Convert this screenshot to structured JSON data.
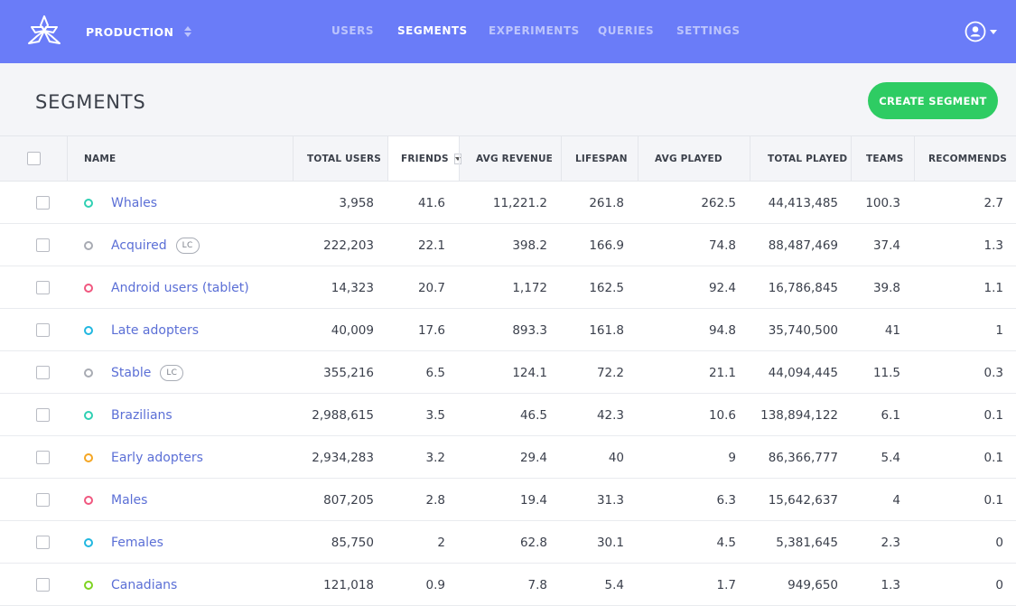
{
  "header": {
    "environment": "PRODUCTION",
    "nav": [
      {
        "label": "USERS",
        "active": false
      },
      {
        "label": "SEGMENTS",
        "active": true
      },
      {
        "label": "EXPERIMENTS",
        "active": false
      },
      {
        "label": "QUERIES",
        "active": false
      },
      {
        "label": "SETTINGS",
        "active": false
      }
    ],
    "accent_color": "#6a7cf8"
  },
  "page": {
    "title": "SEGMENTS",
    "create_button": "CREATE SEGMENT",
    "create_button_color": "#2ecc63"
  },
  "table": {
    "columns": [
      "NAME",
      "TOTAL USERS",
      "FRIENDS",
      "AVG REVENUE",
      "LIFESPAN",
      "AVG PLAYED",
      "TOTAL PLAYED",
      "TEAMS",
      "RECOMMENDS"
    ],
    "sorted_column": "FRIENDS",
    "rows": [
      {
        "name": "Whales",
        "dot": "#2fd0b3",
        "badge": "",
        "total_users": "3,958",
        "friends": "41.6",
        "avg_revenue": "11,221.2",
        "lifespan": "261.8",
        "avg_played": "262.5",
        "total_played": "44,413,485",
        "teams": "100.3",
        "recommends": "2.7"
      },
      {
        "name": "Acquired",
        "dot": "#a8abb3",
        "badge": "LC",
        "total_users": "222,203",
        "friends": "22.1",
        "avg_revenue": "398.2",
        "lifespan": "166.9",
        "avg_played": "74.8",
        "total_played": "88,487,469",
        "teams": "37.4",
        "recommends": "1.3"
      },
      {
        "name": "Android users (tablet)",
        "dot": "#f0577f",
        "badge": "",
        "total_users": "14,323",
        "friends": "20.7",
        "avg_revenue": "1,172",
        "lifespan": "162.5",
        "avg_played": "92.4",
        "total_played": "16,786,845",
        "teams": "39.8",
        "recommends": "1.1"
      },
      {
        "name": "Late adopters",
        "dot": "#21b7e0",
        "badge": "",
        "total_users": "40,009",
        "friends": "17.6",
        "avg_revenue": "893.3",
        "lifespan": "161.8",
        "avg_played": "94.8",
        "total_played": "35,740,500",
        "teams": "41",
        "recommends": "1"
      },
      {
        "name": "Stable",
        "dot": "#a8abb3",
        "badge": "LC",
        "total_users": "355,216",
        "friends": "6.5",
        "avg_revenue": "124.1",
        "lifespan": "72.2",
        "avg_played": "21.1",
        "total_played": "44,094,445",
        "teams": "11.5",
        "recommends": "0.3"
      },
      {
        "name": "Brazilians",
        "dot": "#2fd0b3",
        "badge": "",
        "total_users": "2,988,615",
        "friends": "3.5",
        "avg_revenue": "46.5",
        "lifespan": "42.3",
        "avg_played": "10.6",
        "total_played": "138,894,122",
        "teams": "6.1",
        "recommends": "0.1"
      },
      {
        "name": "Early adopters",
        "dot": "#f5a623",
        "badge": "",
        "total_users": "2,934,283",
        "friends": "3.2",
        "avg_revenue": "29.4",
        "lifespan": "40",
        "avg_played": "9",
        "total_played": "86,366,777",
        "teams": "5.4",
        "recommends": "0.1"
      },
      {
        "name": "Males",
        "dot": "#f0577f",
        "badge": "",
        "total_users": "807,205",
        "friends": "2.8",
        "avg_revenue": "19.4",
        "lifespan": "31.3",
        "avg_played": "6.3",
        "total_played": "15,642,637",
        "teams": "4",
        "recommends": "0.1"
      },
      {
        "name": "Females",
        "dot": "#21b7e0",
        "badge": "",
        "total_users": "85,750",
        "friends": "2",
        "avg_revenue": "62.8",
        "lifespan": "30.1",
        "avg_played": "4.5",
        "total_played": "5,381,645",
        "teams": "2.3",
        "recommends": "0"
      },
      {
        "name": "Canadians",
        "dot": "#7ed321",
        "badge": "",
        "total_users": "121,018",
        "friends": "0.9",
        "avg_revenue": "7.8",
        "lifespan": "5.4",
        "avg_played": "1.7",
        "total_played": "949,650",
        "teams": "1.3",
        "recommends": "0"
      }
    ]
  }
}
